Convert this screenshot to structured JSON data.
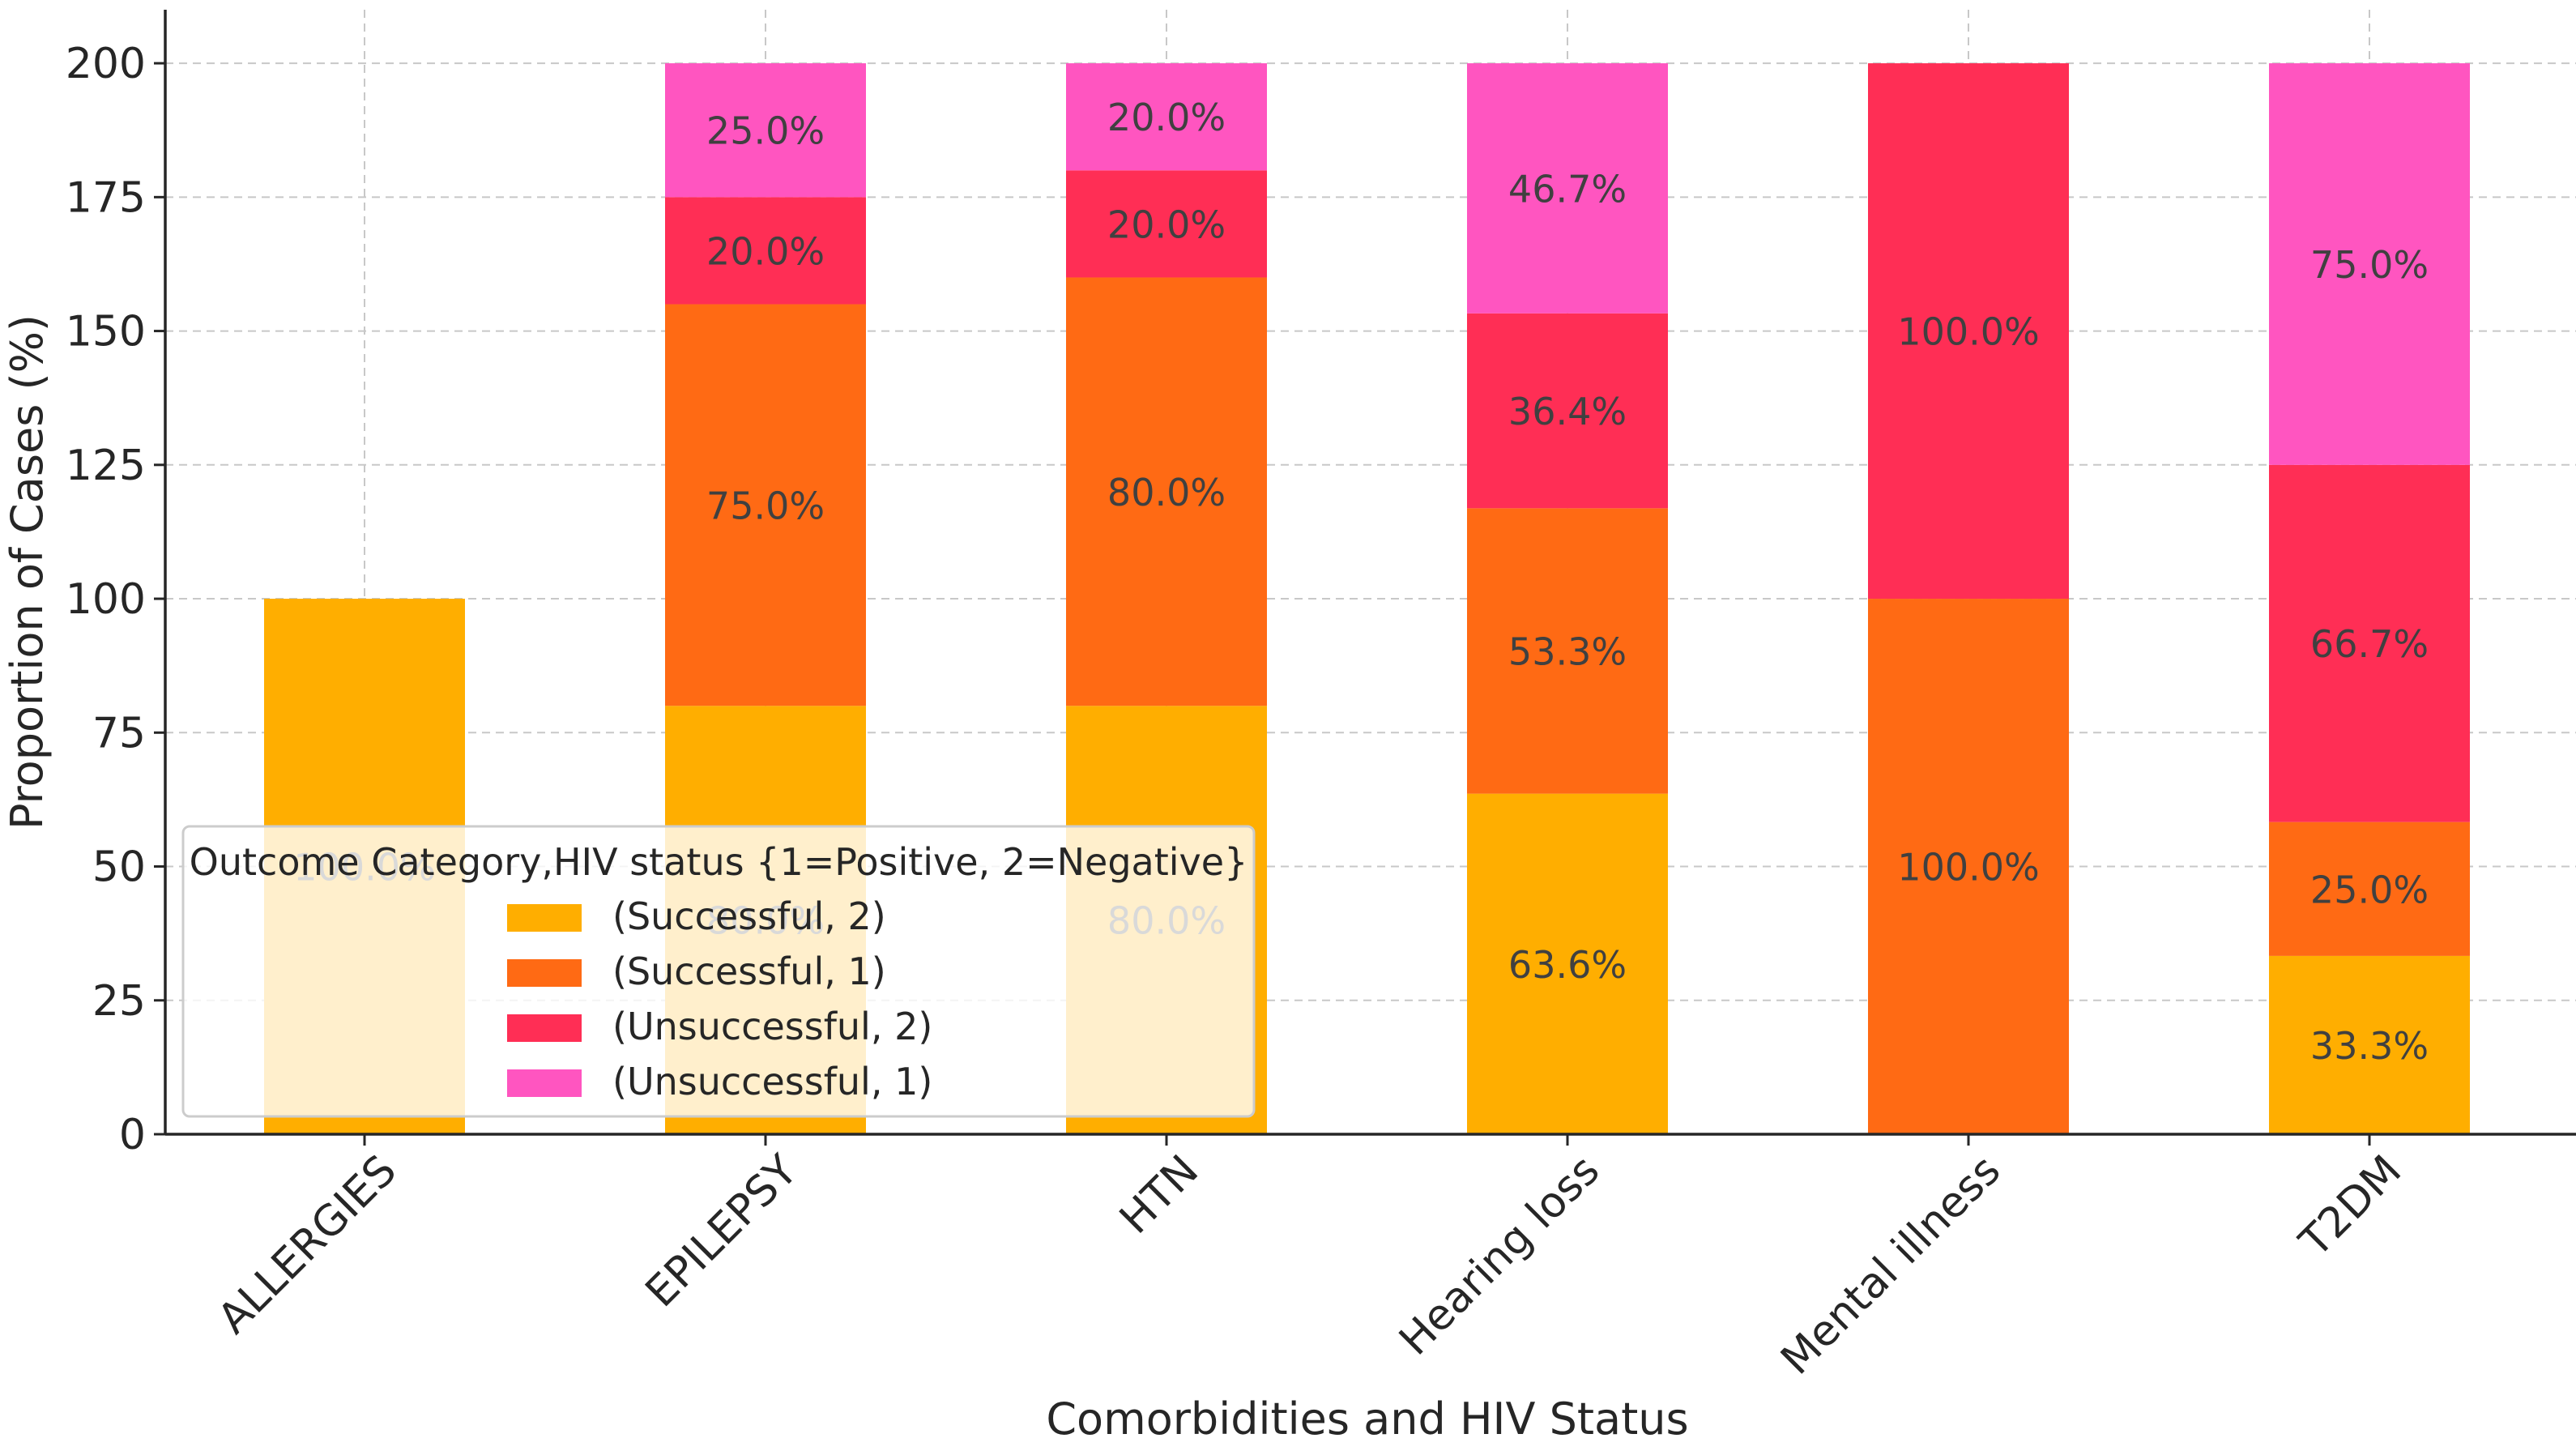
{
  "chart_data": {
    "type": "bar",
    "stacked": true,
    "title": "",
    "xlabel": "Comorbidities and HIV Status",
    "ylabel": "Proportion of Cases (%)",
    "ylim": [
      0,
      210
    ],
    "yticks": [
      0,
      25,
      50,
      75,
      100,
      125,
      150,
      175,
      200
    ],
    "grid": true,
    "categories": [
      "ALLERGIES",
      "EPILEPSY",
      "HTN",
      "Hearing loss",
      "Mental illness",
      "T2DM"
    ],
    "series": [
      {
        "name": "(Successful, 2)",
        "color": "#FFAE00",
        "values": [
          100.0,
          80.0,
          80.0,
          63.6,
          0,
          33.3
        ]
      },
      {
        "name": "(Successful, 1)",
        "color": "#FF6A14",
        "values": [
          0,
          75.0,
          80.0,
          53.3,
          100.0,
          25.0
        ]
      },
      {
        "name": "(Unsuccessful, 2)",
        "color": "#FF2E55",
        "values": [
          0,
          20.0,
          20.0,
          36.4,
          100.0,
          66.7
        ]
      },
      {
        "name": "(Unsuccessful, 1)",
        "color": "#FF55C0",
        "values": [
          0,
          25.0,
          20.0,
          46.7,
          0,
          75.0
        ]
      }
    ],
    "legend": {
      "title": "Outcome Category,HIV status {1=Positive, 2=Negative}",
      "position": "lower-left"
    }
  }
}
